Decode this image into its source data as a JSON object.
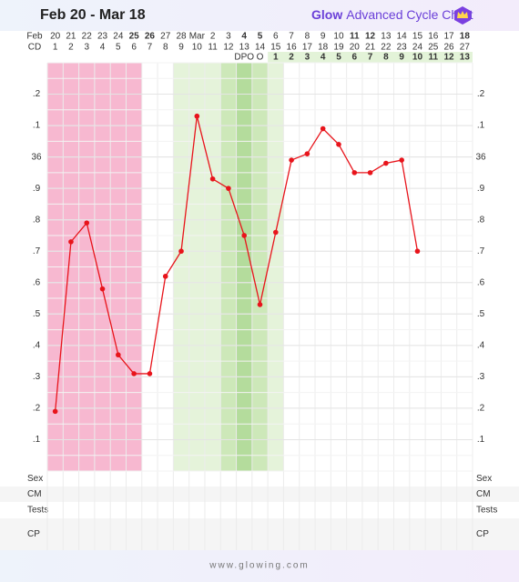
{
  "header": {
    "title": "Feb 20 - Mar 18",
    "brand": "Glow",
    "brand_subtitle": "Advanced Cycle Chart"
  },
  "footer": "www.glowing.com",
  "chart_data": {
    "type": "line",
    "month_label": "Feb",
    "cd_label": "CD",
    "dates": [
      20,
      21,
      22,
      23,
      24,
      25,
      26,
      27,
      28,
      "Mar",
      2,
      3,
      4,
      5,
      6,
      7,
      8,
      9,
      10,
      11,
      12,
      13,
      14,
      15,
      16,
      17,
      18
    ],
    "highlighted_dates": [
      5,
      6,
      12,
      13,
      19,
      20,
      26
    ],
    "highlight_color": "#e53935",
    "cycle_days": [
      1,
      2,
      3,
      4,
      5,
      6,
      7,
      8,
      9,
      10,
      11,
      12,
      13,
      14,
      15,
      16,
      17,
      18,
      19,
      20,
      21,
      22,
      23,
      24,
      25,
      26,
      27
    ],
    "dpo": [
      null,
      null,
      null,
      null,
      null,
      null,
      null,
      null,
      null,
      null,
      null,
      null,
      "DPO",
      "O",
      1,
      2,
      3,
      4,
      5,
      6,
      7,
      8,
      9,
      10,
      11,
      12,
      13
    ],
    "series": [
      {
        "name": "Temperature",
        "color": "#e8141b",
        "values": [
          35.19,
          35.73,
          35.79,
          35.58,
          35.37,
          35.31,
          35.31,
          35.62,
          35.7,
          36.13,
          35.93,
          35.9,
          35.75,
          35.53,
          35.76,
          35.99,
          36.01,
          36.09,
          36.04,
          35.95,
          35.95,
          35.98,
          35.99,
          35.7,
          null,
          null,
          null
        ]
      }
    ],
    "ylim": [
      35.0,
      36.3
    ],
    "yticks": [
      {
        "value": 35.1,
        "label": ".1"
      },
      {
        "value": 35.2,
        "label": ".2"
      },
      {
        "value": 35.3,
        "label": ".3"
      },
      {
        "value": 35.4,
        "label": ".4"
      },
      {
        "value": 35.5,
        "label": ".5"
      },
      {
        "value": 35.6,
        "label": ".6"
      },
      {
        "value": 35.7,
        "label": ".7"
      },
      {
        "value": 35.8,
        "label": ".8"
      },
      {
        "value": 35.9,
        "label": ".9"
      },
      36,
      {
        "value": 36.1,
        "label": ".1"
      },
      {
        "value": 36.2,
        "label": ".2"
      }
    ],
    "grid": true,
    "bands": [
      {
        "from": 1,
        "to": 6,
        "color": "#f7b8d0"
      },
      {
        "from": 9,
        "to": 15,
        "color": "#e5f3da"
      },
      {
        "from": 12,
        "to": 14,
        "color": "#cde8b9"
      },
      {
        "from": 13,
        "to": 13,
        "color": "#b4dc9c"
      }
    ],
    "rows": [
      "Sex",
      "CM",
      "Tests",
      "CP"
    ]
  }
}
